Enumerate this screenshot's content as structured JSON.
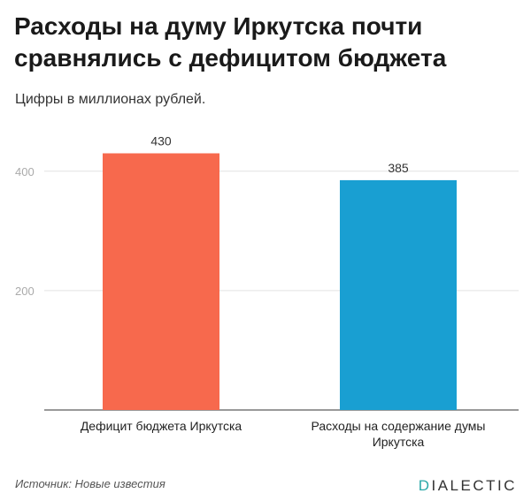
{
  "chart_title": "Расходы на думу Иркутска почти сравнялись с дефицитом бюджета",
  "subtitle": "Цифры в миллионах рублей.",
  "source": "Источник: Новые известия",
  "brand": {
    "name": "DIALECTIC",
    "accent_letter": "D",
    "rest": "IALECTIC",
    "accent_color": "#2aa8a8"
  },
  "chart_data": {
    "type": "bar",
    "categories": [
      [
        "Дефицит бюджета Иркутска"
      ],
      [
        "Расходы на содержание думы",
        "Иркутска"
      ]
    ],
    "values": [
      430,
      385
    ],
    "colors": [
      "#f7694d",
      "#199fd2"
    ],
    "ylim": [
      0,
      450
    ],
    "yticks": [
      200,
      400
    ],
    "grid": true,
    "xlabel": "",
    "ylabel": ""
  }
}
